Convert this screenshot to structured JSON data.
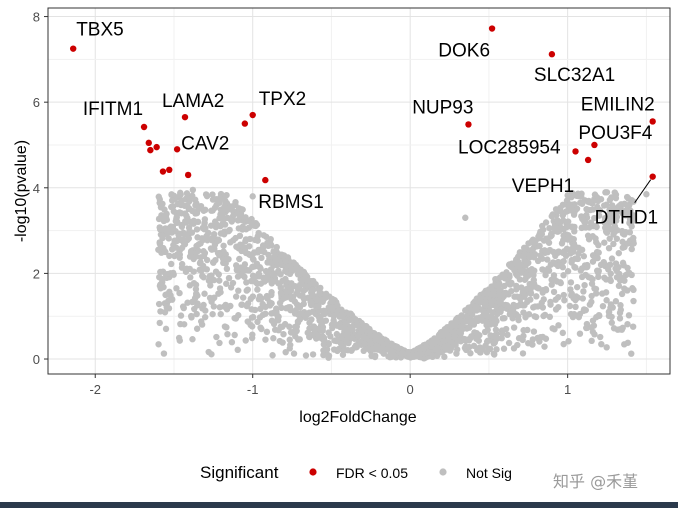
{
  "watermark": "知乎 @禾堇",
  "chart_data": {
    "type": "scatter",
    "title": "",
    "xlabel": "log2FoldChange",
    "ylabel": "-log10(pvalue)",
    "xlim": [
      -2.3,
      1.65
    ],
    "ylim": [
      -0.35,
      8.2
    ],
    "xticks": [
      -2,
      -1,
      0,
      1
    ],
    "yticks": [
      0,
      2,
      4,
      6,
      8
    ],
    "grid": true,
    "legend": {
      "title": "Significant",
      "position": "bottom",
      "entries": [
        {
          "label": "FDR < 0.05",
          "color": "#cc0000"
        },
        {
          "label": "Not Sig",
          "color": "#bfbfbf"
        }
      ]
    },
    "colors": {
      "significant": "#cc0000",
      "not_sig": "#bfbfbf"
    },
    "series": [
      {
        "name": "FDR < 0.05",
        "points": [
          {
            "x": -2.14,
            "y": 7.25,
            "label": "TBX5"
          },
          {
            "x": -1.69,
            "y": 5.42,
            "label": "IFITM1"
          },
          {
            "x": -1.66,
            "y": 5.05
          },
          {
            "x": -1.65,
            "y": 4.88
          },
          {
            "x": -1.61,
            "y": 4.95
          },
          {
            "x": -1.57,
            "y": 4.38
          },
          {
            "x": -1.53,
            "y": 4.42
          },
          {
            "x": -1.43,
            "y": 5.65,
            "label": "LAMA2"
          },
          {
            "x": -1.48,
            "y": 4.9,
            "label": "CAV2"
          },
          {
            "x": -1.41,
            "y": 4.3
          },
          {
            "x": -1.05,
            "y": 5.5
          },
          {
            "x": -1.0,
            "y": 5.7,
            "label": "TPX2"
          },
          {
            "x": -0.92,
            "y": 4.18,
            "label": "RBMS1"
          },
          {
            "x": 0.37,
            "y": 5.48,
            "label": "NUP93"
          },
          {
            "x": 0.52,
            "y": 7.72,
            "label": "DOK6"
          },
          {
            "x": 0.9,
            "y": 7.12,
            "label": "SLC32A1"
          },
          {
            "x": 1.05,
            "y": 4.85,
            "label": "LOC285954"
          },
          {
            "x": 1.13,
            "y": 4.65,
            "label": "VEPH1"
          },
          {
            "x": 1.17,
            "y": 5.0,
            "label": "POU3F4"
          },
          {
            "x": 1.54,
            "y": 5.55,
            "label": "EMILIN2"
          },
          {
            "x": 1.54,
            "y": 4.26,
            "label": "DTHD1"
          }
        ]
      },
      {
        "name": "Not Sig",
        "shape": "V-shaped cloud, max -log10(p) ≈ 3.9, dense near origin"
      }
    ]
  }
}
